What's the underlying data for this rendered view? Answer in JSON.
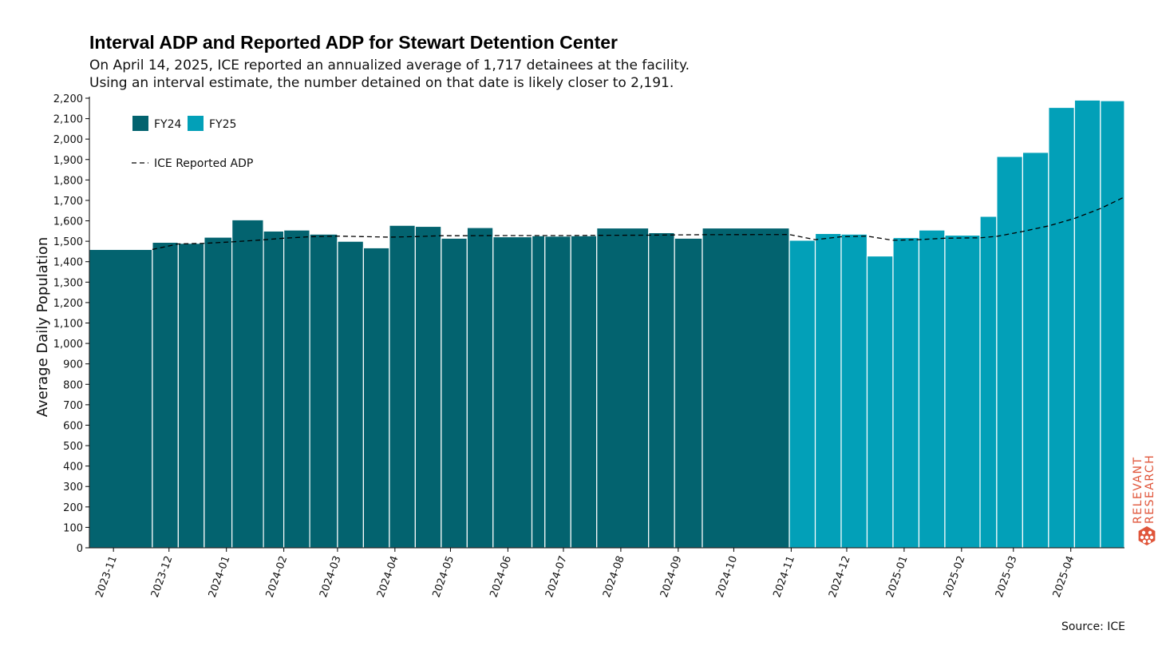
{
  "title": "Interval ADP and Reported ADP for Stewart Detention Center",
  "subtitle_line1": "On April 14, 2025, ICE reported an annualized average of 1,717 detainees at the facility.",
  "subtitle_line2": "Using an interval estimate, the number detained on that date is likely closer to 2,191.",
  "source": "Source: ICE",
  "watermark": {
    "line1": "RELEVANT",
    "line2": "RESEARCH",
    "color": "#e0553a"
  },
  "colors": {
    "FY24": "#03636f",
    "FY25": "#02a0b8",
    "line": "#000000"
  },
  "chart_data": {
    "type": "bar",
    "ylabel": "Average Daily Population",
    "ylim": [
      0,
      2200
    ],
    "yticks": [
      0,
      100,
      200,
      300,
      400,
      500,
      600,
      700,
      800,
      900,
      1000,
      1100,
      1200,
      1300,
      1400,
      1500,
      1600,
      1700,
      1800,
      1900,
      2000,
      2100,
      2200
    ],
    "ytick_labels": [
      "0",
      "100",
      "200",
      "300",
      "400",
      "500",
      "600",
      "700",
      "800",
      "900",
      "1,000",
      "1,100",
      "1,200",
      "1,300",
      "1,400",
      "1,500",
      "1,600",
      "1,700",
      "1,800",
      "1,900",
      "2,000",
      "2,100",
      "2,200"
    ],
    "xlim": [
      "2023-10-19",
      "2025-04-30"
    ],
    "xticks": [
      "2023-11-01",
      "2023-12-01",
      "2024-01-01",
      "2024-02-01",
      "2024-03-01",
      "2024-04-01",
      "2024-05-01",
      "2024-06-01",
      "2024-07-01",
      "2024-08-01",
      "2024-09-01",
      "2024-10-01",
      "2024-11-01",
      "2024-12-01",
      "2025-01-01",
      "2025-02-01",
      "2025-03-01",
      "2025-04-01"
    ],
    "xtick_labels": [
      "2023-11",
      "2023-12",
      "2024-01",
      "2024-02",
      "2024-03",
      "2024-04",
      "2024-05",
      "2024-06",
      "2024-07",
      "2024-08",
      "2024-09",
      "2024-10",
      "2024-11",
      "2024-12",
      "2025-01",
      "2025-02",
      "2025-03",
      "2025-04"
    ],
    "legend": {
      "placement": "top-left",
      "bar_entries": [
        "FY24",
        "FY25"
      ],
      "line_entry": "ICE Reported ADP"
    },
    "series": [
      {
        "name": "FY24",
        "type": "interval-bar",
        "intervals": [
          {
            "start": "2023-10-19",
            "end": "2023-11-22",
            "value": 1460
          },
          {
            "start": "2023-11-22",
            "end": "2023-12-06",
            "value": 1495
          },
          {
            "start": "2023-12-06",
            "end": "2023-12-20",
            "value": 1490
          },
          {
            "start": "2023-12-20",
            "end": "2024-01-04",
            "value": 1520
          },
          {
            "start": "2024-01-04",
            "end": "2024-01-21",
            "value": 1605
          },
          {
            "start": "2024-01-21",
            "end": "2024-02-01",
            "value": 1550
          },
          {
            "start": "2024-02-01",
            "end": "2024-02-15",
            "value": 1555
          },
          {
            "start": "2024-02-15",
            "end": "2024-03-01",
            "value": 1535
          },
          {
            "start": "2024-03-01",
            "end": "2024-03-15",
            "value": 1500
          },
          {
            "start": "2024-03-15",
            "end": "2024-03-29",
            "value": 1468
          },
          {
            "start": "2024-03-29",
            "end": "2024-04-12",
            "value": 1578
          },
          {
            "start": "2024-04-12",
            "end": "2024-04-26",
            "value": 1573
          },
          {
            "start": "2024-04-26",
            "end": "2024-05-10",
            "value": 1515
          },
          {
            "start": "2024-05-10",
            "end": "2024-05-24",
            "value": 1567
          },
          {
            "start": "2024-05-24",
            "end": "2024-06-14",
            "value": 1522
          },
          {
            "start": "2024-06-14",
            "end": "2024-06-21",
            "value": 1527
          },
          {
            "start": "2024-06-21",
            "end": "2024-07-05",
            "value": 1525
          },
          {
            "start": "2024-07-05",
            "end": "2024-07-19",
            "value": 1527
          },
          {
            "start": "2024-07-19",
            "end": "2024-08-16",
            "value": 1565
          },
          {
            "start": "2024-08-16",
            "end": "2024-08-30",
            "value": 1542
          },
          {
            "start": "2024-08-30",
            "end": "2024-09-14",
            "value": 1515
          },
          {
            "start": "2024-09-14",
            "end": "2024-10-31",
            "value": 1565
          }
        ]
      },
      {
        "name": "FY25",
        "type": "interval-bar",
        "intervals": [
          {
            "start": "2024-10-31",
            "end": "2024-11-14",
            "value": 1505
          },
          {
            "start": "2024-11-14",
            "end": "2024-11-28",
            "value": 1538
          },
          {
            "start": "2024-11-28",
            "end": "2024-12-12",
            "value": 1535
          },
          {
            "start": "2024-12-12",
            "end": "2024-12-26",
            "value": 1428
          },
          {
            "start": "2024-12-26",
            "end": "2025-01-09",
            "value": 1518
          },
          {
            "start": "2025-01-09",
            "end": "2025-01-23",
            "value": 1555
          },
          {
            "start": "2025-01-23",
            "end": "2025-02-11",
            "value": 1530
          },
          {
            "start": "2025-02-11",
            "end": "2025-02-20",
            "value": 1622
          },
          {
            "start": "2025-02-20",
            "end": "2025-03-06",
            "value": 1915
          },
          {
            "start": "2025-03-06",
            "end": "2025-03-20",
            "value": 1935
          },
          {
            "start": "2025-03-20",
            "end": "2025-04-03",
            "value": 2155
          },
          {
            "start": "2025-04-03",
            "end": "2025-04-17",
            "value": 2191
          },
          {
            "start": "2025-04-17",
            "end": "2025-04-30",
            "value": 2188
          }
        ]
      },
      {
        "name": "ICE Reported ADP",
        "type": "line",
        "style": "dashed",
        "x": [
          "2023-11-22",
          "2023-12-06",
          "2023-12-20",
          "2024-01-04",
          "2024-01-21",
          "2024-02-01",
          "2024-02-15",
          "2024-03-01",
          "2024-03-15",
          "2024-03-29",
          "2024-04-12",
          "2024-04-26",
          "2024-05-10",
          "2024-05-24",
          "2024-06-14",
          "2024-06-21",
          "2024-07-05",
          "2024-07-19",
          "2024-08-16",
          "2024-08-30",
          "2024-09-14",
          "2024-10-31",
          "2024-11-14",
          "2024-11-28",
          "2024-12-12",
          "2024-12-26",
          "2025-01-09",
          "2025-01-23",
          "2025-02-11",
          "2025-02-20",
          "2025-03-06",
          "2025-03-20",
          "2025-04-03",
          "2025-04-17",
          "2025-04-30"
        ],
        "y": [
          1460,
          1487,
          1490,
          1497,
          1507,
          1515,
          1522,
          1525,
          1523,
          1520,
          1523,
          1527,
          1527,
          1528,
          1528,
          1528,
          1528,
          1529,
          1530,
          1531,
          1532,
          1533,
          1508,
          1522,
          1525,
          1505,
          1508,
          1515,
          1517,
          1524,
          1548,
          1575,
          1612,
          1660,
          1717
        ]
      }
    ]
  }
}
